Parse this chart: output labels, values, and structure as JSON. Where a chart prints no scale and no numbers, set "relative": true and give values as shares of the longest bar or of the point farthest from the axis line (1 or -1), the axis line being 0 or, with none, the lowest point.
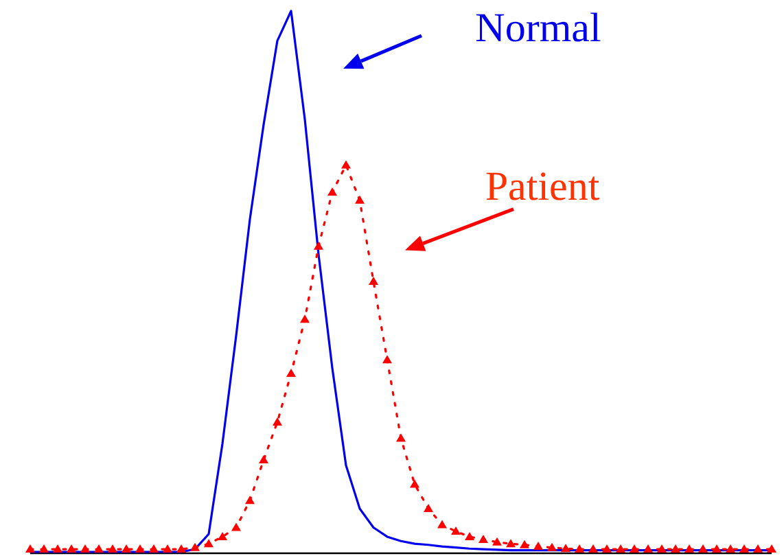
{
  "chart_data": {
    "type": "line",
    "relative": true,
    "categories": [
      null,
      null,
      null,
      null,
      null,
      null,
      null,
      null,
      null,
      null,
      null,
      null,
      null,
      null,
      null,
      null,
      null,
      null,
      null,
      null,
      null,
      null,
      null,
      null,
      null,
      null,
      null,
      null,
      null,
      null,
      null,
      null,
      null,
      null,
      null,
      null,
      null,
      null,
      null,
      null,
      null,
      null,
      null,
      null,
      null,
      null,
      null,
      null,
      null,
      null,
      null,
      null,
      null,
      null,
      null
    ],
    "series": [
      {
        "name": "Normal",
        "color": "#0000ee",
        "marker": "none",
        "line_style": "solid",
        "values": [
          0,
          0,
          0,
          0,
          0,
          0,
          0,
          0,
          0,
          0,
          0,
          0,
          0.005,
          0.033,
          0.2,
          0.4,
          0.615,
          0.79,
          0.945,
          1,
          0.8,
          0.55,
          0.34,
          0.16,
          0.08,
          0.045,
          0.028,
          0.02,
          0.015,
          0.013,
          0.01,
          0.008,
          0.006,
          0.005,
          0.004,
          0.003,
          0.003,
          0.003,
          0.003,
          0.003,
          0.003,
          0.003,
          0.003,
          0.003,
          0.003,
          0.003,
          0.003,
          0.003,
          0.003,
          0.003,
          0.003,
          0.003,
          0.003,
          0.003,
          0.003
        ]
      },
      {
        "name": "Patient",
        "color": "#ff0000",
        "marker": "triangle",
        "line_style": "dotted",
        "values": [
          0.005,
          0.005,
          0.005,
          0.005,
          0.005,
          0.005,
          0.005,
          0.005,
          0.005,
          0.005,
          0.005,
          0.005,
          0.008,
          0.015,
          0.028,
          0.045,
          0.095,
          0.17,
          0.24,
          0.33,
          0.43,
          0.565,
          0.665,
          0.715,
          0.65,
          0.5,
          0.355,
          0.21,
          0.125,
          0.08,
          0.05,
          0.038,
          0.028,
          0.023,
          0.018,
          0.015,
          0.013,
          0.01,
          0.008,
          0.006,
          0.005,
          0.005,
          0.005,
          0.005,
          0.005,
          0.005,
          0.005,
          0.005,
          0.005,
          0.005,
          0.005,
          0.005,
          0.005,
          0.005,
          0.005
        ]
      }
    ]
  }
}
